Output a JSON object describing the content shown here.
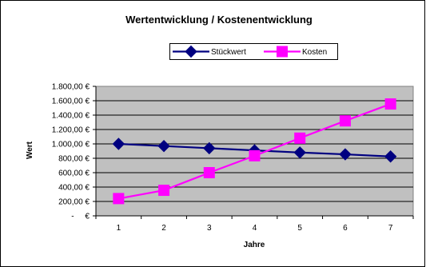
{
  "chart_data": {
    "type": "line",
    "title": "Wertentwicklung / Kostenentwicklung",
    "xlabel": "Jahre",
    "ylabel": "Wert",
    "categories": [
      "1",
      "2",
      "3",
      "4",
      "5",
      "6",
      "7"
    ],
    "ylim": [
      0,
      1800
    ],
    "ytick_labels": [
      "-     €",
      "200,00 €",
      "400,00 €",
      "600,00 €",
      "800,00 €",
      "1.000,00 €",
      "1.200,00 €",
      "1.400,00 €",
      "1.600,00 €",
      "1.800,00 €"
    ],
    "grid": true,
    "legend_position": "top",
    "series": [
      {
        "name": "Stückwert",
        "values": [
          1000,
          970,
          940,
          910,
          880,
          855,
          825
        ],
        "color": "#000080",
        "marker": "diamond"
      },
      {
        "name": "Kosten",
        "values": [
          240,
          355,
          600,
          835,
          1080,
          1320,
          1555
        ],
        "color": "#FF00FF",
        "marker": "square"
      }
    ],
    "plot_background": "#C0C0C0"
  }
}
